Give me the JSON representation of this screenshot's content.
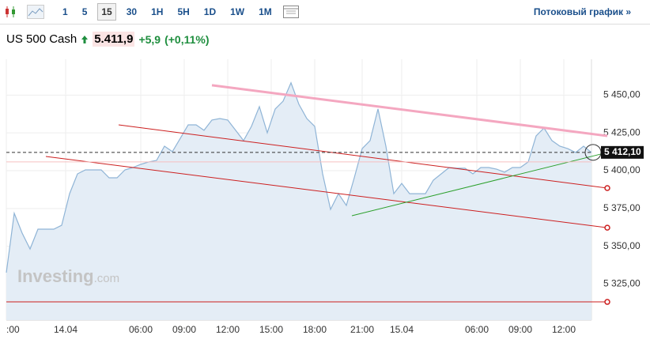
{
  "toolbar": {
    "intervals": [
      "1",
      "5",
      "15",
      "30",
      "1H",
      "5H",
      "1D",
      "1W",
      "1M"
    ],
    "selected": "15",
    "link": "Потоковый график »"
  },
  "header": {
    "name": "US 500 Cash",
    "price": "5.411,9",
    "change": "+5,9",
    "change_pct": "(+0,11%)"
  },
  "watermark": {
    "brand": "Investing",
    "suffix": ".com"
  },
  "chart_data": {
    "type": "area",
    "x": [
      0,
      2,
      4,
      6,
      8,
      10,
      12,
      14,
      16,
      18,
      20,
      22,
      24,
      26,
      28,
      30,
      32,
      34,
      36,
      38,
      40,
      42,
      44,
      46,
      48,
      50,
      52,
      54,
      56,
      58,
      60,
      62,
      64,
      66,
      68,
      70,
      72,
      74,
      76,
      78,
      80,
      82,
      84,
      86,
      88,
      90,
      92,
      94,
      96,
      98,
      100,
      102,
      104,
      106,
      108,
      110,
      112,
      114,
      116,
      118,
      120,
      122,
      124,
      126,
      128,
      130,
      132,
      134,
      136,
      138,
      140,
      142,
      144,
      146,
      148
    ],
    "series": [
      {
        "name": "US 500 Cash",
        "color": "#8fb4d6",
        "fill": "#e4edf6",
        "values": [
          5332.5,
          5371.8,
          5358.7,
          5348.2,
          5361.3,
          5361.3,
          5361.3,
          5363.9,
          5384.8,
          5397.9,
          5400.5,
          5400.5,
          5400.5,
          5395.3,
          5395.3,
          5400.5,
          5402.1,
          5404.2,
          5405.8,
          5406.8,
          5416.2,
          5412.6,
          5421.4,
          5430.3,
          5430.3,
          5426.7,
          5433.5,
          5434.5,
          5433.5,
          5426.7,
          5419.9,
          5429.3,
          5442.4,
          5425.1,
          5440.8,
          5446.0,
          5458.1,
          5443.9,
          5434.5,
          5429.3,
          5397.9,
          5374.4,
          5384.8,
          5377.0,
          5395.3,
          5414.6,
          5419.9,
          5440.8,
          5416.2,
          5384.8,
          5391.6,
          5384.8,
          5384.8,
          5384.8,
          5393.7,
          5397.9,
          5402.1,
          5401.6,
          5401.6,
          5397.9,
          5402.1,
          5402.1,
          5401.0,
          5399.0,
          5402.1,
          5402.1,
          5405.8,
          5423.0,
          5428.2,
          5419.9,
          5416.2,
          5414.6,
          5412.0,
          5416.2,
          5412.0
        ]
      }
    ],
    "xlim": [
      0,
      148
    ],
    "ylim": [
      5301.2,
      5473.7
    ],
    "xticks": [
      {
        "value": 0,
        "label": ":00"
      },
      {
        "value": 15,
        "label": "14.04"
      },
      {
        "value": 34,
        "label": "06:00"
      },
      {
        "value": 45,
        "label": "09:00"
      },
      {
        "value": 56,
        "label": "12:00"
      },
      {
        "value": 67,
        "label": "15:00"
      },
      {
        "value": 78,
        "label": "18:00"
      },
      {
        "value": 90,
        "label": "21:00"
      },
      {
        "value": 100,
        "label": "15.04"
      },
      {
        "value": 119,
        "label": "06:00"
      },
      {
        "value": 130,
        "label": "09:00"
      },
      {
        "value": 141,
        "label": "12:00"
      }
    ],
    "yticks": [
      {
        "value": 5325,
        "label": "5 325,00"
      },
      {
        "value": 5350,
        "label": "5 350,00"
      },
      {
        "value": 5375,
        "label": "5 375,00"
      },
      {
        "value": 5400,
        "label": "5 400,00"
      },
      {
        "value": 5425,
        "label": "5 425,00"
      },
      {
        "value": 5450,
        "label": "5 450,00"
      }
    ],
    "grid": true,
    "last_price": {
      "value": 5412.1,
      "label": "5 412,10"
    },
    "drawings": [
      {
        "color": "#f4a7c0",
        "points": [
          [
            52,
            5456.5
          ],
          [
            152,
            5423.0
          ]
        ]
      },
      {
        "color": "#cc1f1f",
        "points": [
          [
            28.4,
            5430.3
          ],
          [
            152,
            5388.5
          ]
        ]
      },
      {
        "color": "#cc1f1f",
        "points": [
          [
            10,
            5409.4
          ],
          [
            152,
            5362.3
          ]
        ]
      },
      {
        "color": "#2ca02c",
        "points": [
          [
            87.4,
            5370.2
          ],
          [
            150.4,
            5411.0
          ]
        ]
      },
      {
        "color": "#cc1f1f",
        "points": [
          [
            0,
            5313.2
          ],
          [
            152,
            5313.2
          ]
        ]
      },
      {
        "color": "#f6c0c0",
        "points": [
          [
            0,
            5405.8
          ],
          [
            148,
            5405.8
          ]
        ]
      }
    ]
  }
}
